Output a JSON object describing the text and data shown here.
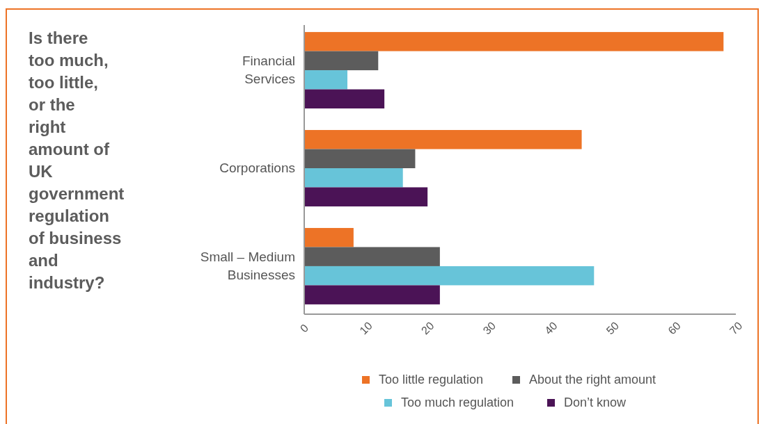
{
  "chart_data": {
    "type": "bar",
    "orientation": "horizontal",
    "title": "Is there too much, too little, or the right amount of UK government regulation of business and industry?",
    "categories": [
      "Financial Services",
      "Corporations",
      "Small – Medium Businesses"
    ],
    "series": [
      {
        "name": "Too little regulation",
        "color": "#ed7326",
        "values": [
          68,
          45,
          8
        ]
      },
      {
        "name": "About the right amount",
        "color": "#5c5c5c",
        "values": [
          12,
          18,
          22
        ]
      },
      {
        "name": "Too much regulation",
        "color": "#67c4d9",
        "values": [
          7,
          16,
          47
        ]
      },
      {
        "name": "Don’t know",
        "color": "#4b1356",
        "values": [
          13,
          20,
          22
        ]
      }
    ],
    "xlim": [
      0,
      70
    ],
    "xticks": [
      0,
      10,
      20,
      30,
      40,
      50,
      60,
      70
    ],
    "grid": false,
    "legend": "bottom"
  }
}
